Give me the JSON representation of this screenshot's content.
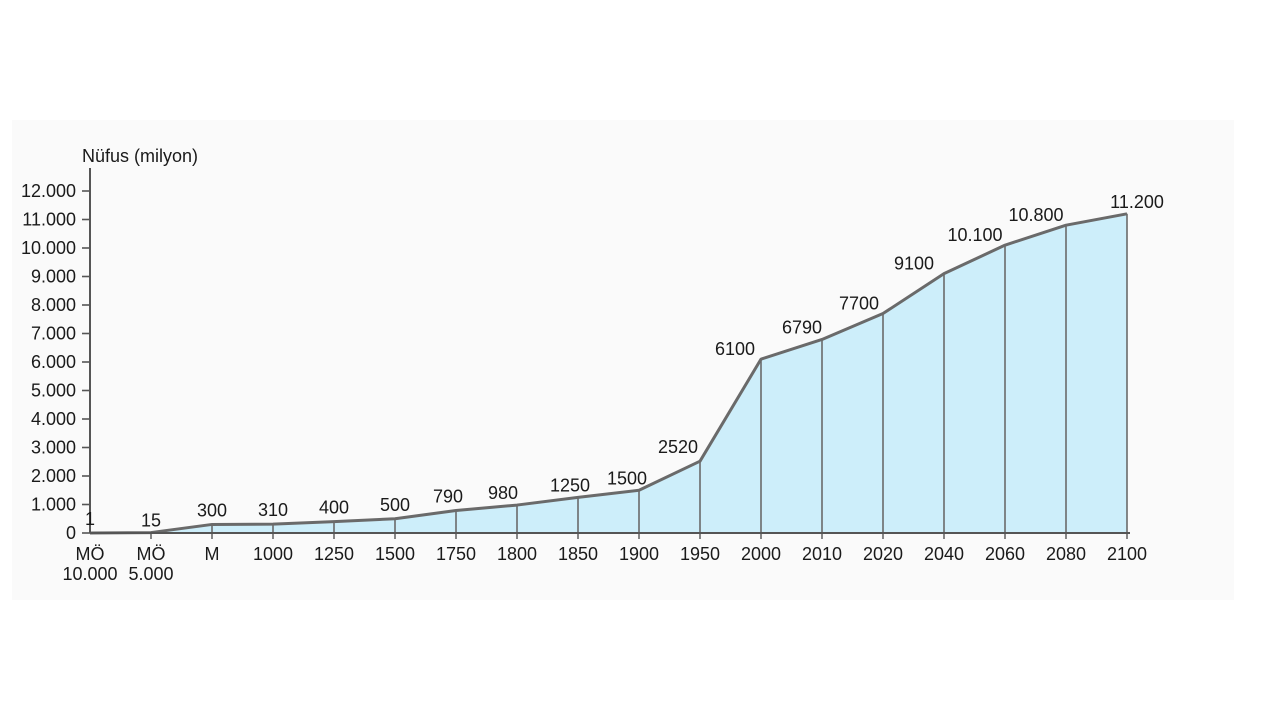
{
  "chart_data": {
    "type": "area",
    "title": "",
    "ylabel": "Nüfus (milyon)",
    "xlabel": "",
    "ylim": [
      0,
      12000
    ],
    "yticks": [
      {
        "value": 0,
        "label": "0"
      },
      {
        "value": 1000,
        "label": "1.000"
      },
      {
        "value": 2000,
        "label": "2.000"
      },
      {
        "value": 3000,
        "label": "3.000"
      },
      {
        "value": 4000,
        "label": "4.000"
      },
      {
        "value": 5000,
        "label": "5.000"
      },
      {
        "value": 6000,
        "label": "6.000"
      },
      {
        "value": 7000,
        "label": "7.000"
      },
      {
        "value": 8000,
        "label": "8.000"
      },
      {
        "value": 9000,
        "label": "9.000"
      },
      {
        "value": 10000,
        "label": "10.000"
      },
      {
        "value": 11000,
        "label": "11.000"
      },
      {
        "value": 12000,
        "label": "12.000"
      }
    ],
    "categories": [
      {
        "label": [
          "MÖ",
          "10.000"
        ]
      },
      {
        "label": [
          "MÖ",
          "5.000"
        ]
      },
      {
        "label": [
          "M"
        ]
      },
      {
        "label": [
          "1000"
        ]
      },
      {
        "label": [
          "1250"
        ]
      },
      {
        "label": [
          "1500"
        ]
      },
      {
        "label": [
          "1750"
        ]
      },
      {
        "label": [
          "1800"
        ]
      },
      {
        "label": [
          "1850"
        ]
      },
      {
        "label": [
          "1900"
        ]
      },
      {
        "label": [
          "1950"
        ]
      },
      {
        "label": [
          "2000"
        ]
      },
      {
        "label": [
          "2010"
        ]
      },
      {
        "label": [
          "2020"
        ]
      },
      {
        "label": [
          "2040"
        ]
      },
      {
        "label": [
          "2060"
        ]
      },
      {
        "label": [
          "2080"
        ]
      },
      {
        "label": [
          "2100"
        ]
      }
    ],
    "series": [
      {
        "values": [
          1,
          15,
          300,
          310,
          400,
          500,
          790,
          980,
          1250,
          1500,
          2520,
          6100,
          6790,
          7700,
          9100,
          10100,
          10800,
          11200
        ],
        "labels": [
          "1",
          "15",
          "300",
          "310",
          "400",
          "500",
          "790",
          "980",
          "1250",
          "1500",
          "2520",
          "6100",
          "6790",
          "7700",
          "9100",
          "10.100",
          "10.800",
          "11.200"
        ]
      }
    ],
    "grid": false,
    "colors": {
      "fill": "#cdeefa",
      "line": "#6a6a6a",
      "axis": "#555555"
    }
  }
}
